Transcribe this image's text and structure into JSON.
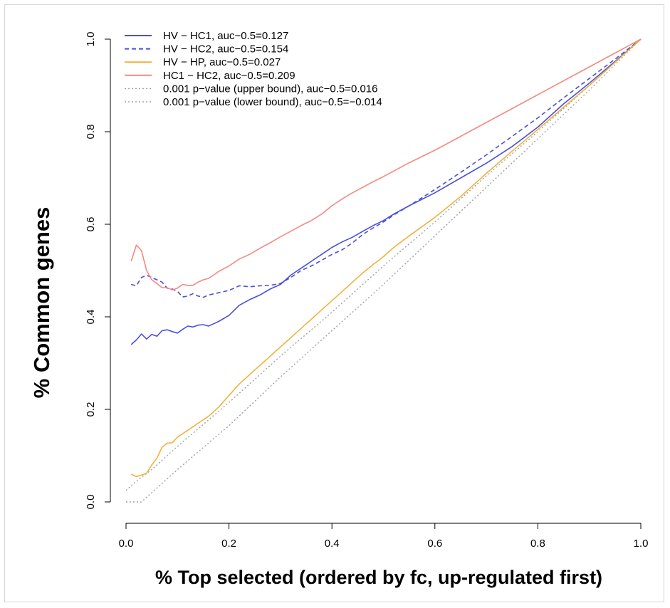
{
  "chart_data": {
    "type": "line",
    "title": "",
    "xlabel": "% Top selected  (ordered by fc, up-regulated first)",
    "ylabel": "% Common genes",
    "xlim": [
      0,
      1
    ],
    "ylim": [
      0,
      1
    ],
    "xticks": [
      0.0,
      0.2,
      0.4,
      0.6,
      0.8,
      1.0
    ],
    "xtick_labels": [
      "0.0",
      "0.2",
      "0.4",
      "0.6",
      "0.8",
      "1.0"
    ],
    "yticks": [
      0.0,
      0.2,
      0.4,
      0.6,
      0.8,
      1.0
    ],
    "ytick_labels": [
      "0.0",
      "0.2",
      "0.4",
      "0.6",
      "0.8",
      "1.0"
    ],
    "grid": false,
    "legend_position": "top-left",
    "series": [
      {
        "name": "HV − HC1, auc−0.5=0.127",
        "color": "#4a4fd8",
        "style": "solid",
        "points": [
          [
            0.01,
            0.34
          ],
          [
            0.02,
            0.35
          ],
          [
            0.03,
            0.363
          ],
          [
            0.04,
            0.352
          ],
          [
            0.05,
            0.362
          ],
          [
            0.06,
            0.358
          ],
          [
            0.07,
            0.37
          ],
          [
            0.08,
            0.372
          ],
          [
            0.09,
            0.368
          ],
          [
            0.1,
            0.365
          ],
          [
            0.11,
            0.373
          ],
          [
            0.12,
            0.38
          ],
          [
            0.13,
            0.378
          ],
          [
            0.14,
            0.382
          ],
          [
            0.15,
            0.383
          ],
          [
            0.16,
            0.38
          ],
          [
            0.17,
            0.385
          ],
          [
            0.18,
            0.39
          ],
          [
            0.2,
            0.403
          ],
          [
            0.22,
            0.425
          ],
          [
            0.24,
            0.437
          ],
          [
            0.26,
            0.447
          ],
          [
            0.28,
            0.46
          ],
          [
            0.3,
            0.47
          ],
          [
            0.32,
            0.49
          ],
          [
            0.34,
            0.505
          ],
          [
            0.36,
            0.52
          ],
          [
            0.38,
            0.535
          ],
          [
            0.4,
            0.55
          ],
          [
            0.42,
            0.562
          ],
          [
            0.44,
            0.572
          ],
          [
            0.46,
            0.585
          ],
          [
            0.48,
            0.597
          ],
          [
            0.5,
            0.608
          ],
          [
            0.52,
            0.622
          ],
          [
            0.55,
            0.64
          ],
          [
            0.6,
            0.668
          ],
          [
            0.65,
            0.7
          ],
          [
            0.7,
            0.732
          ],
          [
            0.75,
            0.768
          ],
          [
            0.8,
            0.81
          ],
          [
            0.85,
            0.86
          ],
          [
            0.9,
            0.905
          ],
          [
            0.95,
            0.952
          ],
          [
            1.0,
            1.0
          ]
        ]
      },
      {
        "name": "HV − HC2, auc−0.5=0.154",
        "color": "#4a4fd8",
        "style": "dashed",
        "points": [
          [
            0.01,
            0.47
          ],
          [
            0.02,
            0.467
          ],
          [
            0.03,
            0.485
          ],
          [
            0.04,
            0.49
          ],
          [
            0.05,
            0.485
          ],
          [
            0.06,
            0.48
          ],
          [
            0.07,
            0.475
          ],
          [
            0.08,
            0.462
          ],
          [
            0.09,
            0.46
          ],
          [
            0.1,
            0.455
          ],
          [
            0.11,
            0.443
          ],
          [
            0.12,
            0.445
          ],
          [
            0.13,
            0.45
          ],
          [
            0.14,
            0.445
          ],
          [
            0.15,
            0.442
          ],
          [
            0.16,
            0.447
          ],
          [
            0.18,
            0.452
          ],
          [
            0.2,
            0.457
          ],
          [
            0.22,
            0.467
          ],
          [
            0.24,
            0.465
          ],
          [
            0.26,
            0.467
          ],
          [
            0.28,
            0.468
          ],
          [
            0.3,
            0.472
          ],
          [
            0.32,
            0.485
          ],
          [
            0.34,
            0.5
          ],
          [
            0.36,
            0.51
          ],
          [
            0.38,
            0.522
          ],
          [
            0.4,
            0.535
          ],
          [
            0.42,
            0.545
          ],
          [
            0.44,
            0.56
          ],
          [
            0.46,
            0.578
          ],
          [
            0.48,
            0.592
          ],
          [
            0.5,
            0.605
          ],
          [
            0.52,
            0.62
          ],
          [
            0.55,
            0.64
          ],
          [
            0.6,
            0.675
          ],
          [
            0.65,
            0.712
          ],
          [
            0.7,
            0.75
          ],
          [
            0.75,
            0.79
          ],
          [
            0.8,
            0.83
          ],
          [
            0.85,
            0.873
          ],
          [
            0.9,
            0.915
          ],
          [
            0.95,
            0.957
          ],
          [
            1.0,
            1.0
          ]
        ]
      },
      {
        "name": "HV − HP, auc−0.5=0.027",
        "color": "#f0b23a",
        "style": "solid",
        "points": [
          [
            0.01,
            0.06
          ],
          [
            0.02,
            0.055
          ],
          [
            0.03,
            0.058
          ],
          [
            0.04,
            0.062
          ],
          [
            0.05,
            0.08
          ],
          [
            0.06,
            0.095
          ],
          [
            0.07,
            0.118
          ],
          [
            0.08,
            0.127
          ],
          [
            0.09,
            0.128
          ],
          [
            0.1,
            0.14
          ],
          [
            0.12,
            0.155
          ],
          [
            0.14,
            0.17
          ],
          [
            0.16,
            0.185
          ],
          [
            0.18,
            0.205
          ],
          [
            0.2,
            0.23
          ],
          [
            0.22,
            0.255
          ],
          [
            0.24,
            0.275
          ],
          [
            0.26,
            0.295
          ],
          [
            0.28,
            0.315
          ],
          [
            0.3,
            0.335
          ],
          [
            0.32,
            0.355
          ],
          [
            0.34,
            0.375
          ],
          [
            0.36,
            0.395
          ],
          [
            0.38,
            0.415
          ],
          [
            0.4,
            0.435
          ],
          [
            0.42,
            0.455
          ],
          [
            0.44,
            0.475
          ],
          [
            0.46,
            0.495
          ],
          [
            0.48,
            0.513
          ],
          [
            0.5,
            0.53
          ],
          [
            0.52,
            0.55
          ],
          [
            0.55,
            0.575
          ],
          [
            0.6,
            0.615
          ],
          [
            0.65,
            0.66
          ],
          [
            0.7,
            0.71
          ],
          [
            0.75,
            0.758
          ],
          [
            0.8,
            0.805
          ],
          [
            0.85,
            0.853
          ],
          [
            0.9,
            0.9
          ],
          [
            0.95,
            0.95
          ],
          [
            1.0,
            1.0
          ]
        ]
      },
      {
        "name": "HC1 − HC2, auc−0.5=0.209",
        "color": "#f28b80",
        "style": "solid",
        "points": [
          [
            0.01,
            0.52
          ],
          [
            0.02,
            0.555
          ],
          [
            0.03,
            0.543
          ],
          [
            0.04,
            0.5
          ],
          [
            0.05,
            0.48
          ],
          [
            0.06,
            0.472
          ],
          [
            0.07,
            0.463
          ],
          [
            0.08,
            0.463
          ],
          [
            0.09,
            0.458
          ],
          [
            0.1,
            0.462
          ],
          [
            0.11,
            0.47
          ],
          [
            0.12,
            0.468
          ],
          [
            0.13,
            0.468
          ],
          [
            0.14,
            0.475
          ],
          [
            0.15,
            0.48
          ],
          [
            0.16,
            0.483
          ],
          [
            0.17,
            0.49
          ],
          [
            0.18,
            0.498
          ],
          [
            0.2,
            0.51
          ],
          [
            0.22,
            0.525
          ],
          [
            0.24,
            0.535
          ],
          [
            0.26,
            0.548
          ],
          [
            0.28,
            0.56
          ],
          [
            0.3,
            0.573
          ],
          [
            0.32,
            0.585
          ],
          [
            0.34,
            0.597
          ],
          [
            0.36,
            0.608
          ],
          [
            0.38,
            0.622
          ],
          [
            0.4,
            0.64
          ],
          [
            0.42,
            0.655
          ],
          [
            0.44,
            0.668
          ],
          [
            0.46,
            0.68
          ],
          [
            0.48,
            0.692
          ],
          [
            0.5,
            0.703
          ],
          [
            0.52,
            0.715
          ],
          [
            0.55,
            0.733
          ],
          [
            0.6,
            0.76
          ],
          [
            0.65,
            0.79
          ],
          [
            0.7,
            0.82
          ],
          [
            0.75,
            0.85
          ],
          [
            0.8,
            0.88
          ],
          [
            0.85,
            0.91
          ],
          [
            0.9,
            0.94
          ],
          [
            0.95,
            0.97
          ],
          [
            1.0,
            1.0
          ]
        ]
      },
      {
        "name": "0.001 p−value (upper bound), auc−0.5=0.016",
        "color": "#a0a0a0",
        "style": "dotted",
        "points": [
          [
            0.0,
            0.025
          ],
          [
            0.02,
            0.045
          ],
          [
            0.05,
            0.07
          ],
          [
            0.1,
            0.12
          ],
          [
            0.2,
            0.215
          ],
          [
            0.3,
            0.315
          ],
          [
            0.4,
            0.41
          ],
          [
            0.5,
            0.51
          ],
          [
            0.6,
            0.605
          ],
          [
            0.7,
            0.705
          ],
          [
            0.8,
            0.8
          ],
          [
            0.9,
            0.9
          ],
          [
            1.0,
            1.0
          ]
        ]
      },
      {
        "name": "0.001 p−value (lower bound), auc−0.5=−0.014",
        "color": "#a0a0a0",
        "style": "dotted",
        "points": [
          [
            0.0,
            0.0
          ],
          [
            0.03,
            0.0
          ],
          [
            0.05,
            0.02
          ],
          [
            0.1,
            0.07
          ],
          [
            0.2,
            0.165
          ],
          [
            0.3,
            0.27
          ],
          [
            0.4,
            0.37
          ],
          [
            0.5,
            0.47
          ],
          [
            0.6,
            0.575
          ],
          [
            0.7,
            0.68
          ],
          [
            0.8,
            0.785
          ],
          [
            0.9,
            0.89
          ],
          [
            1.0,
            1.0
          ]
        ]
      }
    ]
  }
}
